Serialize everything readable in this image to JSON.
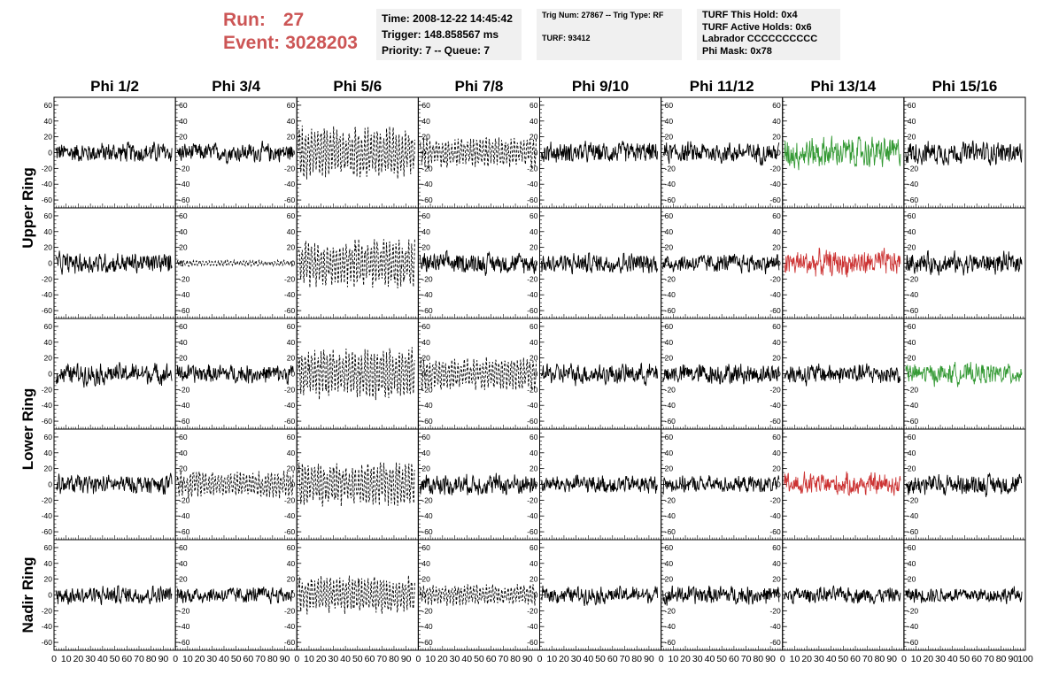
{
  "header": {
    "run_label": "Run:",
    "run_value": "27",
    "event_label": "Event:",
    "event_value": "3028203",
    "time": "Time: 2008-12-22 14:45:42",
    "trigger": "Trigger: 148.858567 ms",
    "priority": "Priority: 7 -- Queue: 7",
    "trig_num": "Trig Num: 27867 -- Trig Type: RF",
    "turf": "TURF: 93412",
    "turf_hold": "TURF This Hold: 0x4",
    "turf_active": "TURF Active Holds: 0x6",
    "labrador": "Labrador CCCCCCCCCC",
    "phi_mask": "Phi Mask: 0x78"
  },
  "colors": {
    "run_text": "#cc5555",
    "info_bg": "#f0f0f0",
    "trace": "#000000",
    "green": "#339933",
    "red": "#cc3333"
  },
  "chart_data": {
    "type": "line",
    "columns": [
      "Phi 1/2",
      "Phi 3/4",
      "Phi 5/6",
      "Phi 7/8",
      "Phi 9/10",
      "Phi 11/12",
      "Phi 13/14",
      "Phi 15/16"
    ],
    "rows": [
      "Upper Ring",
      "Upper Ring",
      "Lower Ring",
      "Lower Ring",
      "Nadir Ring"
    ],
    "ring_labels": [
      {
        "label": "Upper Ring",
        "rows": [
          0,
          1
        ]
      },
      {
        "label": "Lower Ring",
        "rows": [
          2,
          3
        ]
      },
      {
        "label": "Nadir Ring",
        "rows": [
          4
        ]
      }
    ],
    "y_ticks": [
      "60",
      "40",
      "20",
      "0",
      "-20",
      "-40",
      "-60"
    ],
    "y_tick_values": [
      60,
      40,
      20,
      0,
      -20,
      -40,
      -60
    ],
    "ylim": [
      -70,
      70
    ],
    "x_ticks": [
      "0",
      "10",
      "20",
      "30",
      "40",
      "50",
      "60",
      "70",
      "80",
      "90",
      "100"
    ],
    "x_tick_values": [
      0,
      10,
      20,
      30,
      40,
      50,
      60,
      70,
      80,
      90,
      100
    ],
    "xlim": [
      0,
      100
    ],
    "panel_style": [
      [
        "solid",
        "solid",
        "dashed",
        "dashed",
        "solid",
        "solid",
        "green",
        "solid"
      ],
      [
        "solid",
        "flat-dashed",
        "dashed",
        "solid",
        "solid",
        "solid",
        "red",
        "solid"
      ],
      [
        "solid",
        "solid",
        "dashed",
        "dashed",
        "solid",
        "solid",
        "solid",
        "green"
      ],
      [
        "solid",
        "dashed",
        "dashed",
        "solid",
        "solid",
        "solid",
        "red",
        "solid"
      ],
      [
        "solid",
        "solid",
        "dashed",
        "dashed",
        "solid",
        "solid",
        "solid",
        "solid"
      ]
    ],
    "panel_amplitude": [
      [
        20,
        18,
        35,
        20,
        20,
        20,
        30,
        22
      ],
      [
        20,
        4,
        32,
        20,
        20,
        18,
        25,
        20
      ],
      [
        20,
        18,
        35,
        22,
        20,
        20,
        20,
        20
      ],
      [
        18,
        18,
        30,
        20,
        18,
        16,
        22,
        20
      ],
      [
        18,
        16,
        25,
        14,
        16,
        18,
        15,
        15
      ]
    ],
    "samples_per_panel": 260
  }
}
